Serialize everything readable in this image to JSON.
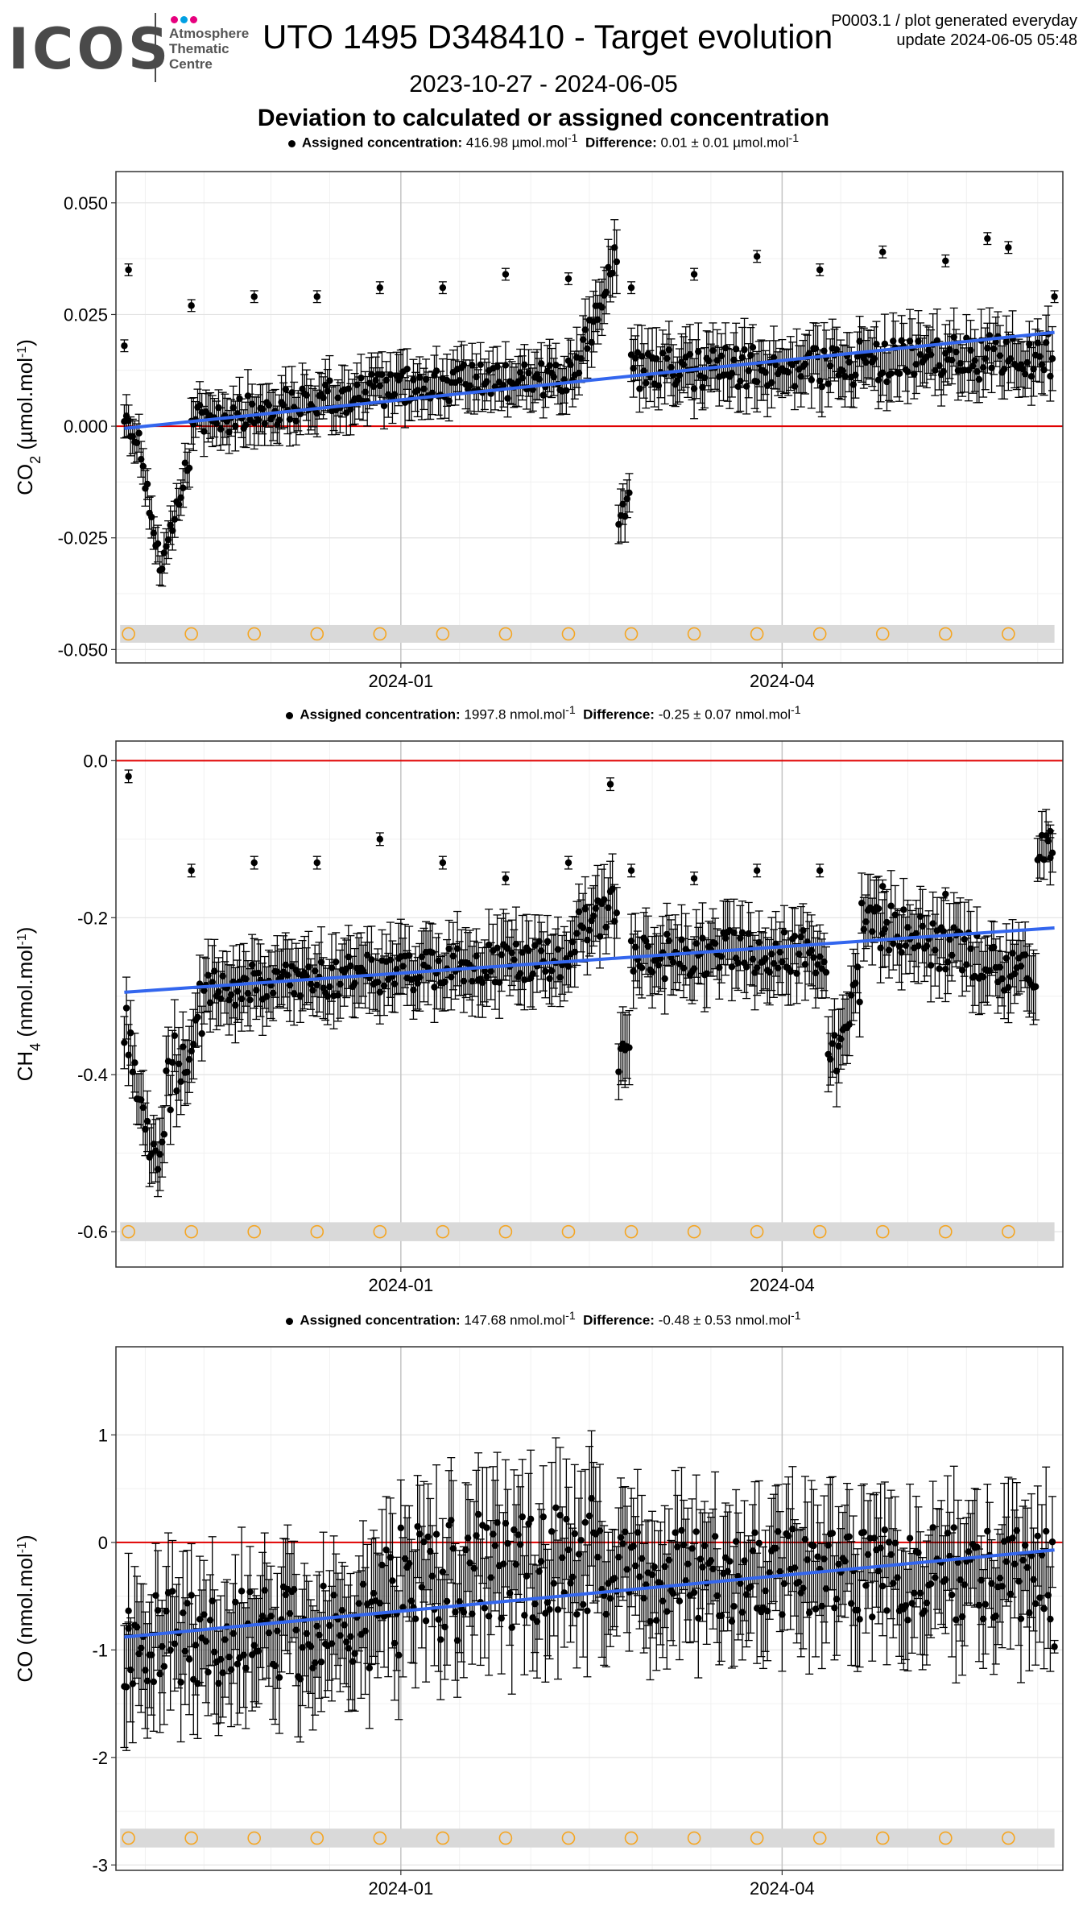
{
  "header": {
    "logo_name": "ICOS",
    "logo_lines": [
      "Atmosphere",
      "Thematic",
      "Centre"
    ],
    "logo_dot_colors": [
      "#e6007e",
      "#00a0e3",
      "#e6007e"
    ],
    "title": "UTO 1495 D348410 - Target evolution",
    "meta_line1": "P0003.1 / plot generated everyday",
    "meta_line2": "update  2024-06-05 05:48",
    "date_range": "2023-10-27 - 2024-06-05",
    "subtitle": "Deviation to calculated or assigned concentration"
  },
  "colors": {
    "points": "#000000",
    "trend": "#3366ee",
    "zero_line": "#e00000",
    "marker": "#f5a623",
    "band": "#d9d9d9"
  },
  "chart_data": [
    {
      "type": "scatter",
      "title": "",
      "info_assigned_label": "Assigned concentration:",
      "info_assigned_value": "416.98 µmol.mol",
      "info_diff_label": "Difference:",
      "info_diff_value": "0.01 ± 0.01 µmol.mol",
      "unit_sup": "-1",
      "ylabel_main": "CO",
      "ylabel_sub": "2",
      "ylabel_unit": "µmol.mol",
      "xlim": [
        "2023-10-25",
        "2024-06-07"
      ],
      "ylim": [
        -0.053,
        0.057
      ],
      "yticks": [
        0.05,
        0.025,
        0.0,
        -0.025,
        -0.05
      ],
      "ytick_labels": [
        "0.050",
        "0.025",
        "0.000",
        "-0.025",
        "-0.050"
      ],
      "xticks": [
        "2024-01-01",
        "2024-04-01"
      ],
      "xtick_labels": [
        "2024-01",
        "2024-04"
      ],
      "zero_line": 0.0,
      "trend": {
        "start": [
          "2023-10-27",
          -0.0005
        ],
        "end": [
          "2024-06-05",
          0.021
        ]
      },
      "marker_y": -0.0465,
      "marker_dates": [
        "2023-10-28",
        "2023-11-12",
        "2023-11-27",
        "2023-12-12",
        "2023-12-27",
        "2024-01-11",
        "2024-01-26",
        "2024-02-10",
        "2024-02-25",
        "2024-03-11",
        "2024-03-26",
        "2024-04-10",
        "2024-04-25",
        "2024-05-10",
        "2024-05-25"
      ],
      "cal_points": [
        [
          "2023-10-27",
          0.018
        ],
        [
          "2023-10-28",
          0.035
        ],
        [
          "2023-11-12",
          0.027
        ],
        [
          "2023-11-27",
          0.029
        ],
        [
          "2023-12-12",
          0.029
        ],
        [
          "2023-12-27",
          0.031
        ],
        [
          "2024-01-11",
          0.031
        ],
        [
          "2024-01-26",
          0.034
        ],
        [
          "2024-02-10",
          0.033
        ],
        [
          "2024-02-25",
          0.031
        ],
        [
          "2024-03-11",
          0.034
        ],
        [
          "2024-03-26",
          0.038
        ],
        [
          "2024-04-10",
          0.035
        ],
        [
          "2024-04-25",
          0.039
        ],
        [
          "2024-05-10",
          0.037
        ],
        [
          "2024-05-20",
          0.042
        ],
        [
          "2024-05-25",
          0.04
        ],
        [
          "2024-06-05",
          0.029
        ]
      ],
      "series": [
        {
          "segment": [
            "2023-10-27",
            "2023-11-01"
          ],
          "from": 0.004,
          "to": -0.008,
          "noise": 0.003,
          "err": 0.004
        },
        {
          "segment": [
            "2023-11-01",
            "2023-11-05"
          ],
          "from": -0.012,
          "to": -0.034,
          "noise": 0.003,
          "err": 0.004
        },
        {
          "segment": [
            "2023-11-05",
            "2023-11-12"
          ],
          "from": -0.033,
          "to": -0.005,
          "noise": 0.003,
          "err": 0.004
        },
        {
          "segment": [
            "2023-11-12",
            "2024-01-01"
          ],
          "from": 0.001,
          "to": 0.009,
          "noise": 0.004,
          "err": 0.005
        },
        {
          "segment": [
            "2024-01-01",
            "2024-02-12"
          ],
          "from": 0.009,
          "to": 0.011,
          "noise": 0.004,
          "err": 0.005
        },
        {
          "segment": [
            "2024-02-12",
            "2024-02-22"
          ],
          "from": 0.012,
          "to": 0.04,
          "noise": 0.004,
          "err": 0.006
        },
        {
          "segment": [
            "2024-02-22",
            "2024-02-25"
          ],
          "from": -0.022,
          "to": -0.014,
          "noise": 0.003,
          "err": 0.005
        },
        {
          "segment": [
            "2024-02-25",
            "2024-06-05"
          ],
          "from": 0.012,
          "to": 0.016,
          "noise": 0.005,
          "err": 0.006
        }
      ]
    },
    {
      "type": "scatter",
      "title": "",
      "info_assigned_label": "Assigned concentration:",
      "info_assigned_value": "1997.8 nmol.mol",
      "info_diff_label": "Difference:",
      "info_diff_value": "-0.25 ± 0.07 nmol.mol",
      "unit_sup": "-1",
      "ylabel_main": "CH",
      "ylabel_sub": "4",
      "ylabel_unit": "nmol.mol",
      "xlim": [
        "2023-10-25",
        "2024-06-07"
      ],
      "ylim": [
        -0.645,
        0.025
      ],
      "yticks": [
        0.0,
        -0.2,
        -0.4,
        -0.6
      ],
      "ytick_labels": [
        "0.0",
        "-0.2",
        "-0.4",
        "-0.6"
      ],
      "xticks": [
        "2024-01-01",
        "2024-04-01"
      ],
      "xtick_labels": [
        "2024-01",
        "2024-04"
      ],
      "zero_line": 0.0,
      "trend": {
        "start": [
          "2023-10-27",
          -0.295
        ],
        "end": [
          "2024-06-05",
          -0.213
        ]
      },
      "marker_y": -0.6,
      "marker_dates": [
        "2023-10-28",
        "2023-11-12",
        "2023-11-27",
        "2023-12-12",
        "2023-12-27",
        "2024-01-11",
        "2024-01-26",
        "2024-02-10",
        "2024-02-25",
        "2024-03-11",
        "2024-03-26",
        "2024-04-10",
        "2024-04-25",
        "2024-05-10",
        "2024-05-25"
      ],
      "cal_points": [
        [
          "2023-10-28",
          -0.02
        ],
        [
          "2023-11-12",
          -0.14
        ],
        [
          "2023-11-27",
          -0.13
        ],
        [
          "2023-12-12",
          -0.13
        ],
        [
          "2023-12-27",
          -0.1
        ],
        [
          "2024-01-11",
          -0.13
        ],
        [
          "2024-01-26",
          -0.15
        ],
        [
          "2024-02-10",
          -0.13
        ],
        [
          "2024-02-20",
          -0.03
        ],
        [
          "2024-02-25",
          -0.14
        ],
        [
          "2024-03-11",
          -0.15
        ],
        [
          "2024-03-26",
          -0.14
        ],
        [
          "2024-04-10",
          -0.14
        ],
        [
          "2024-04-25",
          -0.16
        ],
        [
          "2024-05-10",
          -0.17
        ],
        [
          "2024-06-04",
          -0.09
        ]
      ],
      "series": [
        {
          "segment": [
            "2023-10-27",
            "2023-11-01"
          ],
          "from": -0.32,
          "to": -0.44,
          "noise": 0.04,
          "err": 0.04
        },
        {
          "segment": [
            "2023-11-01",
            "2023-11-05"
          ],
          "from": -0.48,
          "to": -0.52,
          "noise": 0.03,
          "err": 0.04
        },
        {
          "segment": [
            "2023-11-05",
            "2023-11-15"
          ],
          "from": -0.44,
          "to": -0.3,
          "noise": 0.05,
          "err": 0.04
        },
        {
          "segment": [
            "2023-11-15",
            "2024-02-12"
          ],
          "from": -0.29,
          "to": -0.25,
          "noise": 0.025,
          "err": 0.04
        },
        {
          "segment": [
            "2024-02-12",
            "2024-02-22"
          ],
          "from": -0.22,
          "to": -0.18,
          "noise": 0.03,
          "err": 0.04
        },
        {
          "segment": [
            "2024-02-22",
            "2024-02-25"
          ],
          "from": -0.38,
          "to": -0.36,
          "noise": 0.02,
          "err": 0.04
        },
        {
          "segment": [
            "2024-02-25",
            "2024-04-12"
          ],
          "from": -0.25,
          "to": -0.24,
          "noise": 0.03,
          "err": 0.04
        },
        {
          "segment": [
            "2024-04-12",
            "2024-04-20"
          ],
          "from": -0.4,
          "to": -0.27,
          "noise": 0.03,
          "err": 0.04
        },
        {
          "segment": [
            "2024-04-20",
            "2024-06-01"
          ],
          "from": -0.2,
          "to": -0.28,
          "noise": 0.03,
          "err": 0.04
        },
        {
          "segment": [
            "2024-06-01",
            "2024-06-05"
          ],
          "from": -0.12,
          "to": -0.1,
          "noise": 0.02,
          "err": 0.03
        }
      ]
    },
    {
      "type": "scatter",
      "title": "",
      "info_assigned_label": "Assigned concentration:",
      "info_assigned_value": "147.68 nmol.mol",
      "info_diff_label": "Difference:",
      "info_diff_value": "-0.48 ± 0.53 nmol.mol",
      "unit_sup": "-1",
      "ylabel_main": "CO",
      "ylabel_sub": "",
      "ylabel_unit": "nmol.mol",
      "xlim": [
        "2023-10-25",
        "2024-06-07"
      ],
      "ylim": [
        -3.05,
        1.82
      ],
      "yticks": [
        1,
        0,
        -1,
        -2,
        -3
      ],
      "ytick_labels": [
        "1",
        "0",
        "-1",
        "-2",
        "-3"
      ],
      "xticks": [
        "2024-01-01",
        "2024-04-01"
      ],
      "xtick_labels": [
        "2024-01",
        "2024-04"
      ],
      "zero_line": 0.0,
      "trend": {
        "start": [
          "2023-10-27",
          -0.88
        ],
        "end": [
          "2024-06-05",
          -0.07
        ]
      },
      "marker_y": -2.75,
      "marker_dates": [
        "2023-10-28",
        "2023-11-12",
        "2023-11-27",
        "2023-12-12",
        "2023-12-27",
        "2024-01-11",
        "2024-01-26",
        "2024-02-10",
        "2024-02-25",
        "2024-03-11",
        "2024-03-26",
        "2024-04-10",
        "2024-04-25",
        "2024-05-10",
        "2024-05-25"
      ],
      "cal_points": [
        [
          "2023-10-28",
          -0.8
        ],
        [
          "2024-06-05",
          -0.97
        ]
      ],
      "series": [
        {
          "segment": [
            "2023-10-27",
            "2023-12-27"
          ],
          "from": -0.9,
          "to": -0.8,
          "noise": 0.45,
          "err": 0.5
        },
        {
          "segment": [
            "2023-12-27",
            "2024-02-20"
          ],
          "from": -0.5,
          "to": -0.1,
          "noise": 0.6,
          "err": 0.55
        },
        {
          "segment": [
            "2024-02-20",
            "2024-06-05"
          ],
          "from": -0.3,
          "to": -0.3,
          "noise": 0.45,
          "err": 0.5
        }
      ]
    }
  ]
}
